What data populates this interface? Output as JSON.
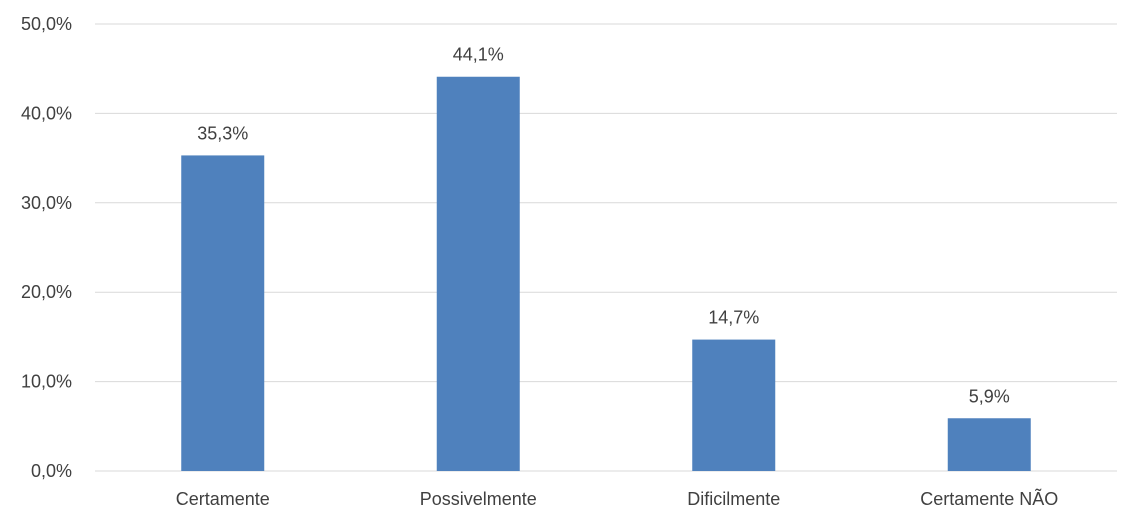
{
  "chart_data": {
    "type": "bar",
    "title": "",
    "xlabel": "",
    "ylabel": "",
    "categories": [
      "Certamente",
      "Possivelmente",
      "Dificilmente",
      "Certamente NÃO"
    ],
    "values": [
      35.3,
      44.1,
      14.7,
      5.9
    ],
    "data_labels": [
      "35,3%",
      "44,1%",
      "14,7%",
      "5,9%"
    ],
    "ylim": [
      0,
      50
    ],
    "yticks": [
      0,
      10,
      20,
      30,
      40,
      50
    ],
    "ytick_labels": [
      "0,0%",
      "10,0%",
      "20,0%",
      "30,0%",
      "40,0%",
      "50,0%"
    ],
    "grid": true,
    "legend": "none",
    "colors": {
      "bar": "#4f81bd",
      "grid": "#d9d9d9",
      "text": "#404040"
    }
  }
}
